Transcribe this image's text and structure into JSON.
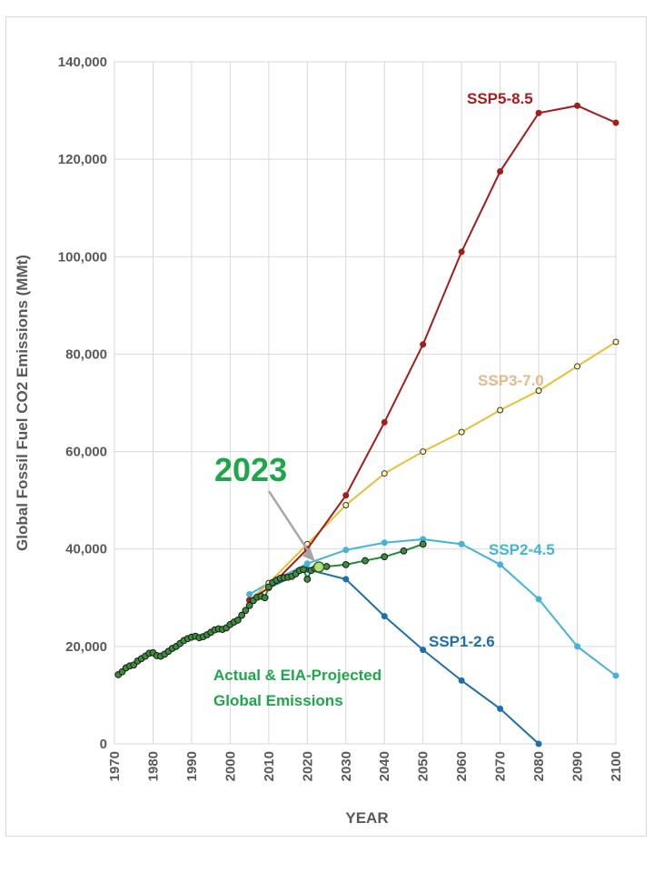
{
  "chart_data": {
    "type": "line",
    "title": "",
    "xlabel": "YEAR",
    "ylabel": "Global Fossil Fuel CO2 Emissions (MMt)",
    "xlim": [
      1970,
      2100
    ],
    "ylim": [
      0,
      140000
    ],
    "x_ticks": [
      "1970",
      "1980",
      "1990",
      "2000",
      "2010",
      "2020",
      "2030",
      "2040",
      "2050",
      "2060",
      "2070",
      "2080",
      "2090",
      "2100"
    ],
    "y_ticks": [
      "0",
      "20,000",
      "40,000",
      "60,000",
      "80,000",
      "100,000",
      "120,000",
      "140,000"
    ],
    "grid": "vertical and horizontal",
    "series": [
      {
        "name": "SSP5-8.5",
        "color": "#a31d1d",
        "label_color": "#a31d1d",
        "x": [
          2005,
          2010,
          2020,
          2030,
          2040,
          2050,
          2060,
          2070,
          2080,
          2090,
          2100
        ],
        "y": [
          29500,
          32000,
          40000,
          51000,
          66000,
          82000,
          101000,
          117500,
          129500,
          131000,
          127500
        ]
      },
      {
        "name": "SSP3-7.0",
        "color": "#e6c034",
        "label_color": "#e8b88a",
        "x": [
          2005,
          2010,
          2020,
          2030,
          2040,
          2050,
          2060,
          2070,
          2080,
          2090,
          2100
        ],
        "y": [
          29500,
          33000,
          41000,
          49000,
          55500,
          60000,
          64000,
          68500,
          72500,
          77500,
          82500
        ]
      },
      {
        "name": "SSP2-4.5",
        "color": "#44b4d6",
        "label_color": "#44b4d6",
        "x": [
          2005,
          2010,
          2020,
          2030,
          2040,
          2050,
          2060,
          2070,
          2080,
          2090,
          2100
        ],
        "y": [
          30700,
          33000,
          37000,
          39800,
          41300,
          42000,
          41000,
          36800,
          29700,
          20000,
          14000
        ]
      },
      {
        "name": "SSP1-2.6",
        "color": "#1f6fa8",
        "label_color": "#1f6fa8",
        "x": [
          2005,
          2010,
          2020,
          2030,
          2040,
          2050,
          2060,
          2070,
          2080
        ],
        "y": [
          29500,
          32000,
          35800,
          33800,
          26200,
          19300,
          13000,
          7200,
          0
        ]
      },
      {
        "name": "Actual & EIA-Projected Global Emissions",
        "color": "#1e8a3a",
        "label_color": "#1ea64a",
        "x": [
          1971,
          1972,
          1973,
          1974,
          1975,
          1976,
          1977,
          1978,
          1979,
          1980,
          1981,
          1982,
          1983,
          1984,
          1985,
          1986,
          1987,
          1988,
          1989,
          1990,
          1991,
          1992,
          1993,
          1994,
          1995,
          1996,
          1997,
          1998,
          1999,
          2000,
          2001,
          2002,
          2003,
          2004,
          2005,
          2006,
          2007,
          2008,
          2009,
          2010,
          2011,
          2012,
          2013,
          2014,
          2015,
          2016,
          2017,
          2018,
          2019,
          2020,
          2021,
          2022,
          2023,
          2025,
          2030,
          2035,
          2040,
          2045,
          2050
        ],
        "y": [
          14200,
          14800,
          15600,
          16000,
          16200,
          17000,
          17500,
          18000,
          18600,
          18700,
          18100,
          18000,
          18400,
          19000,
          19600,
          20000,
          20600,
          21200,
          21600,
          21900,
          22100,
          21800,
          22000,
          22400,
          22900,
          23400,
          23600,
          23500,
          23800,
          24500,
          25000,
          25400,
          26400,
          27400,
          28400,
          29400,
          30100,
          30300,
          30000,
          32200,
          33100,
          33600,
          34000,
          34100,
          34200,
          34400,
          34900,
          35600,
          35800,
          33800,
          35600,
          36000,
          36300,
          36400,
          36800,
          37600,
          38400,
          39600,
          41000
        ]
      }
    ],
    "annotations": {
      "year_callout": "2023",
      "year_callout_color": "#1ea64a",
      "callout_year": 2023,
      "callout_value": 36300,
      "actual_label_line1": "Actual & EIA-Projected",
      "actual_label_line2": "Global Emissions"
    }
  }
}
